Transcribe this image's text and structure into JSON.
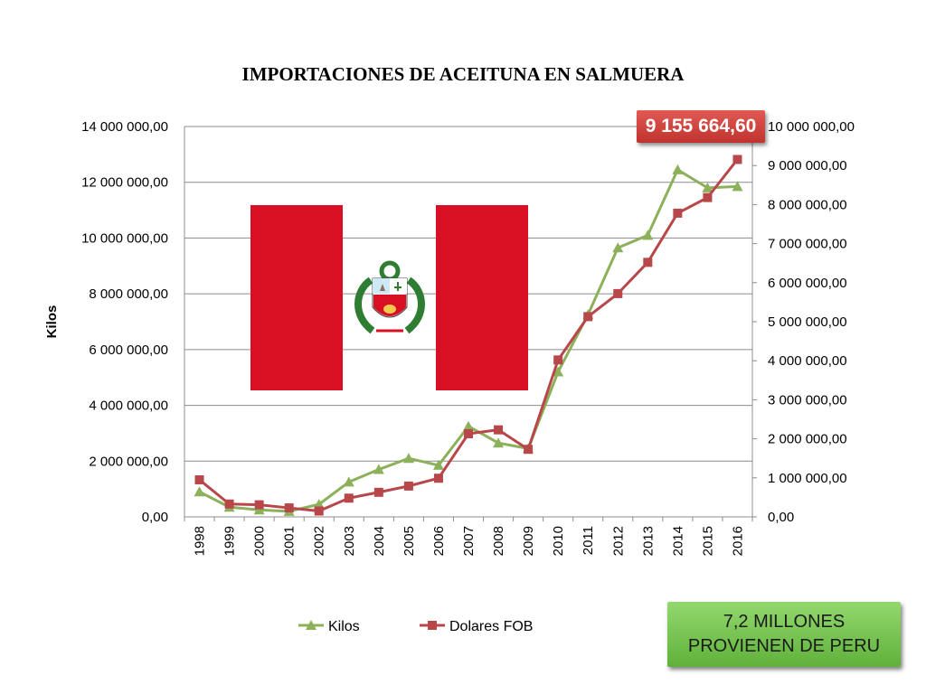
{
  "chart_data": {
    "type": "line",
    "title": "IMPORTACIONES DE ACEITUNA EN SALMUERA",
    "ylabel": "Kilos",
    "categories": [
      "1998",
      "1999",
      "2000",
      "2001",
      "2002",
      "2003",
      "2004",
      "2005",
      "2006",
      "2007",
      "2008",
      "2009",
      "2010",
      "2011",
      "2012",
      "2013",
      "2014",
      "2015",
      "2016"
    ],
    "y_left": {
      "range": [
        0,
        14000000
      ],
      "ticks": [
        "0,00",
        "2 000 000,00",
        "4 000 000,00",
        "6 000 000,00",
        "8 000 000,00",
        "10 000 000,00",
        "12 000 000,00",
        "14 000 000,00"
      ]
    },
    "y_right": {
      "range": [
        0,
        10000000
      ],
      "ticks": [
        "0,00",
        "1 000 000,00",
        "2 000 000,00",
        "3 000 000,00",
        "4 000 000,00",
        "5 000 000,00",
        "6 000 000,00",
        "7 000 000,00",
        "8 000 000,00",
        "9 000 000,00",
        "10 000 000,00"
      ]
    },
    "series": [
      {
        "name": "Kilos",
        "axis": "left",
        "color": "#8db05a",
        "marker": "triangle",
        "values": [
          900000,
          350000,
          250000,
          200000,
          450000,
          1250000,
          1700000,
          2100000,
          1850000,
          3250000,
          2650000,
          2450000,
          5200000,
          7250000,
          9650000,
          10100000,
          12450000,
          11800000,
          11850000
        ]
      },
      {
        "name": "Dolares FOB",
        "axis": "right",
        "color": "#b8474a",
        "marker": "square",
        "values": [
          950000,
          330000,
          310000,
          230000,
          150000,
          480000,
          630000,
          790000,
          990000,
          2130000,
          2230000,
          1730000,
          4020000,
          5130000,
          5720000,
          6520000,
          7780000,
          8180000,
          9155664.6
        ]
      }
    ],
    "legend_position": "bottom",
    "grid": true
  },
  "callouts": {
    "top_value": "9 155 664,60",
    "bottom_line1": "7,2 MILLONES",
    "bottom_line2": "PROVIENEN DE PERU"
  },
  "colors": {
    "flag_red": "#d91023",
    "callout_red": "#c9403b",
    "callout_green": "#78c552"
  }
}
